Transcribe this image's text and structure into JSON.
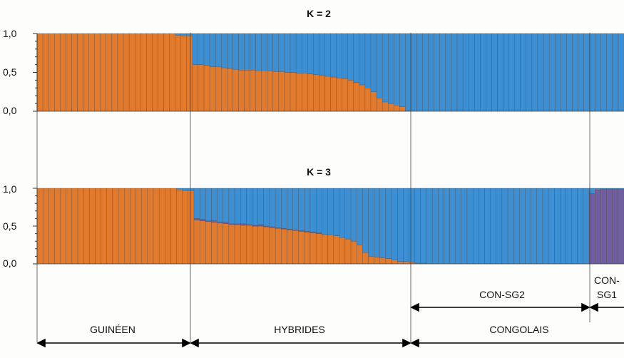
{
  "chart_data": [
    {
      "type": "bar",
      "title": "K = 2",
      "ylim": [
        0,
        1
      ],
      "yticks": [
        "1,0",
        "0,5",
        "0,0"
      ],
      "colors": {
        "cluster1": "#e27a2e",
        "cluster2": "#3d8fd4"
      },
      "series": [
        {
          "name": "",
          "values": [
            1,
            1,
            1,
            1,
            1,
            1,
            1,
            1,
            1,
            1,
            1,
            1,
            1,
            1,
            1,
            1,
            1,
            1,
            1,
            1,
            1,
            1,
            1,
            1,
            0.98,
            0.97,
            0.97,
            0.6,
            0.6,
            0.59,
            0.57,
            0.57,
            0.56,
            0.55,
            0.54,
            0.53,
            0.53,
            0.53,
            0.52,
            0.52,
            0.52,
            0.51,
            0.51,
            0.5,
            0.5,
            0.49,
            0.49,
            0.48,
            0.47,
            0.46,
            0.45,
            0.44,
            0.43,
            0.42,
            0.4,
            0.37,
            0.34,
            0.3,
            0.25,
            0.17,
            0.12,
            0.1,
            0.08,
            0.06,
            0.01,
            0,
            0,
            0,
            0,
            0,
            0,
            0,
            0,
            0,
            0,
            0,
            0,
            0,
            0,
            0,
            0,
            0,
            0,
            0,
            0,
            0,
            0,
            0,
            0,
            0,
            0,
            0,
            0,
            0,
            0,
            0,
            0,
            0,
            0,
            0,
            0,
            0
          ]
        }
      ]
    },
    {
      "type": "bar",
      "title": "K = 3",
      "ylim": [
        0,
        1
      ],
      "yticks": [
        "1,0",
        "0,5",
        "0,0"
      ],
      "colors": {
        "cluster1": "#e27a2e",
        "cluster2": "#3d8fd4",
        "cluster3": "#6f5fa2"
      },
      "series": [
        {
          "name": "",
          "values": [
            1,
            1,
            1,
            1,
            1,
            1,
            1,
            1,
            1,
            1,
            1,
            1,
            1,
            1,
            1,
            1,
            1,
            1,
            1,
            1,
            1,
            1,
            1,
            1,
            0.98,
            0.97,
            0.97,
            0.58,
            0.57,
            0.56,
            0.55,
            0.54,
            0.53,
            0.52,
            0.52,
            0.51,
            0.51,
            0.5,
            0.5,
            0.49,
            0.48,
            0.47,
            0.46,
            0.45,
            0.44,
            0.43,
            0.42,
            0.41,
            0.4,
            0.39,
            0.38,
            0.37,
            0.35,
            0.33,
            0.3,
            0.25,
            0.15,
            0.1,
            0.09,
            0.08,
            0.07,
            0.05,
            0.03,
            0.03,
            0.02,
            0.01,
            0.01,
            0,
            0,
            0,
            0,
            0,
            0,
            0,
            0,
            0,
            0,
            0,
            0,
            0,
            0,
            0,
            0,
            0,
            0,
            0,
            0,
            0,
            0,
            0,
            0,
            0,
            0,
            0,
            0,
            0,
            0,
            0,
            0,
            0,
            0
          ]
        },
        {
          "name": "",
          "values": [
            0,
            0,
            0,
            0,
            0,
            0,
            0,
            0,
            0,
            0,
            0,
            0,
            0,
            0,
            0,
            0,
            0,
            0,
            0,
            0,
            0,
            0,
            0,
            0,
            0,
            0,
            0,
            0.02,
            0.02,
            0.01,
            0.02,
            0.01,
            0.02,
            0.01,
            0.01,
            0.02,
            0.01,
            0.01,
            0.02,
            0.01,
            0.01,
            0.01,
            0.01,
            0.01,
            0.01,
            0.01,
            0.01,
            0.01,
            0.01,
            0,
            0,
            0,
            0,
            0,
            0,
            0,
            0,
            0,
            0,
            0,
            0,
            0,
            0,
            0,
            0,
            0,
            0,
            0,
            0,
            0,
            0,
            0,
            0,
            0,
            0,
            0,
            0,
            0,
            0,
            0,
            0,
            0,
            0,
            0,
            0,
            0,
            0,
            0,
            0,
            0,
            0,
            0,
            0,
            0,
            0,
            0.93,
            0.98,
            0.99,
            0.99,
            0.99,
            0.99
          ]
        }
      ]
    }
  ],
  "groups": {
    "guineen": "GUINÉEN",
    "hybrides": "HYBRIDES",
    "congolais": "CONGOLAIS",
    "con_sg2": "CON-SG2",
    "con_sg1_line1": "CON-",
    "con_sg1_line2": "SG1"
  }
}
